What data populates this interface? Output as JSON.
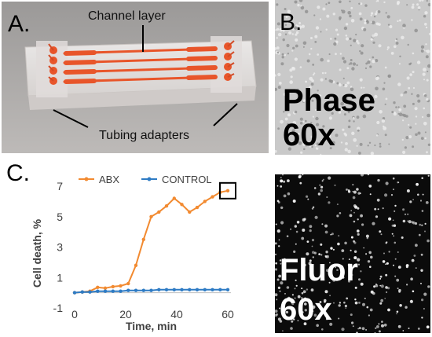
{
  "panel_a": {
    "letter": "A.",
    "channel_label": "Channel layer",
    "tubing_label": "Tubing adapters"
  },
  "panel_b": {
    "letter": "B.",
    "phase_line1": "Phase",
    "phase_line2": "60x",
    "fluor_line1": "Fluor",
    "fluor_line2": "60x"
  },
  "panel_c": {
    "letter": "C."
  },
  "colors": {
    "abx": "#f28a30",
    "control": "#2e7bc4",
    "channel": "#e8552a"
  },
  "chart_data": {
    "type": "line",
    "xlabel": "Time, min",
    "ylabel": "Cell death, %",
    "xlim": [
      0,
      60
    ],
    "ylim": [
      -1,
      7
    ],
    "x_ticks": [
      0,
      20,
      40,
      60
    ],
    "y_ticks": [
      -1,
      1,
      3,
      5,
      7
    ],
    "legend_position": "top",
    "grid": false,
    "series": [
      {
        "name": "ABX",
        "x": [
          0,
          3,
          6,
          9,
          12,
          15,
          18,
          21,
          24,
          27,
          30,
          33,
          36,
          39,
          42,
          45,
          48,
          51,
          54,
          57,
          60
        ],
        "values": [
          0,
          0.05,
          0.1,
          0.35,
          0.3,
          0.4,
          0.45,
          0.6,
          1.8,
          3.5,
          5.0,
          5.3,
          5.7,
          6.2,
          5.8,
          5.3,
          5.6,
          6.0,
          6.3,
          6.6,
          6.7
        ]
      },
      {
        "name": "CONTROL",
        "x": [
          0,
          3,
          6,
          9,
          12,
          15,
          18,
          21,
          24,
          27,
          30,
          33,
          36,
          39,
          42,
          45,
          48,
          51,
          54,
          57,
          60
        ],
        "values": [
          0,
          0.05,
          0.05,
          0.1,
          0.1,
          0.1,
          0.1,
          0.15,
          0.15,
          0.15,
          0.15,
          0.2,
          0.2,
          0.2,
          0.2,
          0.2,
          0.2,
          0.2,
          0.2,
          0.2,
          0.2
        ]
      }
    ],
    "highlight_box_at": [
      60,
      6.7
    ]
  }
}
